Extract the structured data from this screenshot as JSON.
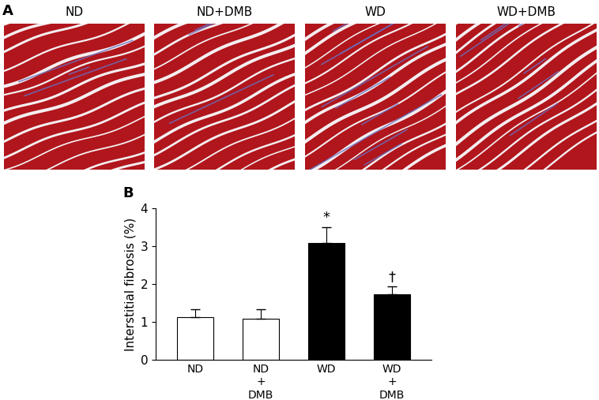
{
  "panel_labels": [
    "A",
    "B"
  ],
  "image_titles": [
    "ND",
    "ND+DMB",
    "WD",
    "WD+DMB"
  ],
  "chart_data": {
    "type": "bar",
    "categories": [
      "ND",
      "ND\n+\nDMB",
      "WD",
      "WD\n+\nDMB"
    ],
    "values": [
      1.13,
      1.08,
      3.08,
      1.73
    ],
    "errors": [
      0.2,
      0.25,
      0.42,
      0.2
    ],
    "colors": [
      "#ffffff",
      "#ffffff",
      "#000000",
      "#000000"
    ],
    "significance": [
      null,
      null,
      "*",
      "†"
    ],
    "ylabel": "Interstitial fibrosis (%)",
    "ylim": [
      0,
      4
    ],
    "yticks": [
      0,
      1,
      2,
      3,
      4
    ],
    "grid": false
  }
}
